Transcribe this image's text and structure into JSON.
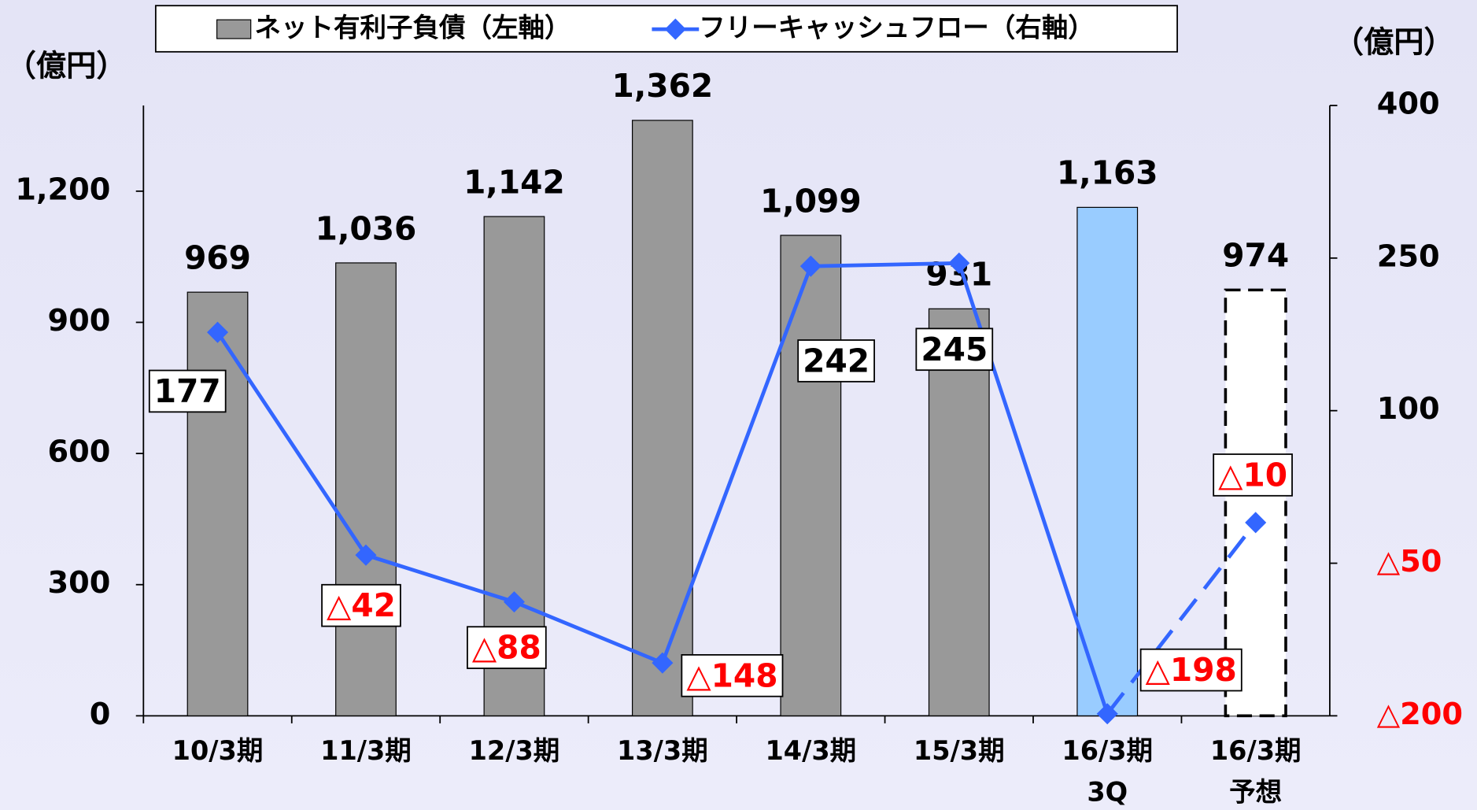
{
  "chart_data": {
    "type": "bar_line",
    "y_label": "（億円）",
    "y2_label": "（億円）",
    "categories": [
      "10/3期",
      "11/3期",
      "12/3期",
      "13/3期",
      "14/3期",
      "15/3期",
      "16/3期\n3Q",
      "16/3期\n予想"
    ],
    "series": [
      {
        "name": "ネット有利子負債（左軸）",
        "type": "bar",
        "axis": "y",
        "values": [
          969,
          1036,
          1142,
          1362,
          1099,
          931,
          1163,
          974
        ],
        "value_labels": [
          "969",
          "1,036",
          "1,142",
          "1,362",
          "1,099",
          "931",
          "1,163",
          "974"
        ],
        "colors": [
          "#999999",
          "#999999",
          "#999999",
          "#999999",
          "#999999",
          "#999999",
          "#99ccff",
          "#ffffff"
        ],
        "dashed": [
          false,
          false,
          false,
          false,
          false,
          false,
          false,
          true
        ]
      },
      {
        "name": "フリーキャッシュフロー（右軸）",
        "type": "line",
        "axis": "y2",
        "color": "#3366ff",
        "values": [
          177,
          -42,
          -88,
          -148,
          242,
          245,
          -198,
          -10
        ],
        "value_labels": [
          "177",
          "△42",
          "△88",
          "△148",
          "242",
          "245",
          "△198",
          "△10"
        ],
        "dashed": [
          false,
          false,
          false,
          false,
          false,
          false,
          false,
          true
        ]
      }
    ],
    "ylim": [
      0,
      1396
    ],
    "yticks": [
      0,
      300,
      600,
      900,
      {
        "value": 1200,
        "label": "1,200"
      }
    ],
    "y2lim": [
      -200,
      400
    ],
    "y2ticks": [
      {
        "value": -200,
        "label": "△200"
      },
      {
        "value": -50,
        "label": "△50"
      },
      100,
      250,
      400
    ]
  }
}
